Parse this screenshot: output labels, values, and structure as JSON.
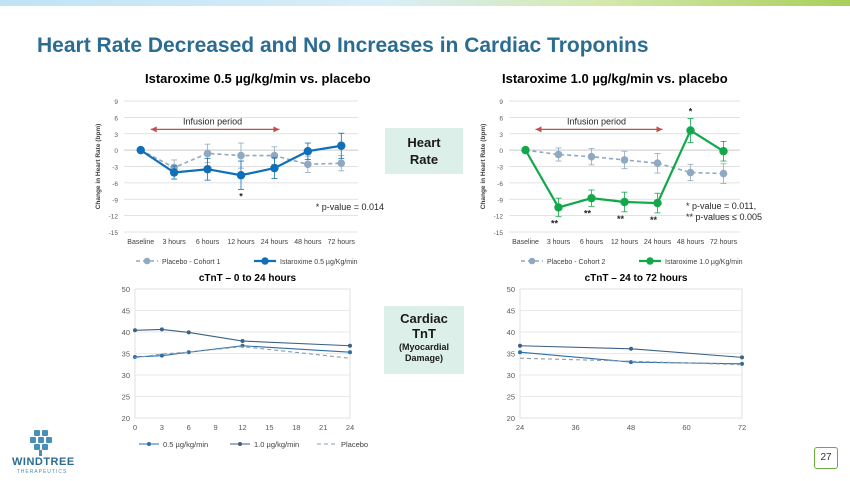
{
  "title": "Heart Rate Decreased and No Increases in Cardiac Troponins",
  "page_number": "27",
  "logo": {
    "name": "WINDTREE",
    "tagline": "THERAPEUTICS"
  },
  "labels": {
    "heart_rate": [
      "Heart",
      "Rate"
    ],
    "cardiac": [
      "Cardiac",
      "TnT",
      "(Myocardial",
      "Damage)"
    ]
  },
  "colors": {
    "accent": "#2b6c93",
    "placebo": "#8ea9c1",
    "dose05": "#0f6fb8",
    "dose10": "#12a84a",
    "arrow": "#c0504d"
  },
  "chart_data": [
    {
      "type": "line",
      "title": "Istaroxime 0.5 µg/kg/min vs. placebo",
      "ylabel": "Change in Heart Rate (bpm)",
      "categories": [
        "Baseline",
        "3 hours",
        "6 hours",
        "12 hours",
        "24 hours",
        "48 hours",
        "72 hours"
      ],
      "ylim": [
        -15,
        9
      ],
      "yticks": [
        -15,
        -12,
        -9,
        -6,
        -3,
        0,
        3,
        6,
        9
      ],
      "series": [
        {
          "name": "Placebo - Cohort 1",
          "values": [
            0,
            -3.2,
            -0.6,
            -1.0,
            -1.0,
            -2.6,
            -2.4
          ],
          "err": [
            0,
            1.4,
            1.7,
            2.3,
            1.6,
            1.5,
            1.4
          ]
        },
        {
          "name": "Istaroxime 0.5 µg/Kg/min",
          "values": [
            0,
            -4.1,
            -3.5,
            -4.6,
            -3.3,
            -0.2,
            0.8
          ],
          "err": [
            0,
            1.2,
            2.0,
            2.6,
            1.9,
            1.5,
            2.3
          ]
        }
      ],
      "infusion_label": "Infusion period",
      "stars": [
        {
          "index": 3,
          "text": "*"
        }
      ],
      "note": [
        "* p-value = 0.014"
      ]
    },
    {
      "type": "line",
      "title": "Istaroxime 1.0 µg/kg/min vs. placebo",
      "ylabel": "Change in Heart Rate (bpm)",
      "categories": [
        "Baseline",
        "3 hours",
        "6 hours",
        "12 hours",
        "24 hours",
        "48 hours",
        "72 hours"
      ],
      "ylim": [
        -15,
        9
      ],
      "yticks": [
        -15,
        -12,
        -9,
        -6,
        -3,
        0,
        3,
        6,
        9
      ],
      "series": [
        {
          "name": "Placebo - Cohort 2",
          "values": [
            0,
            -0.8,
            -1.2,
            -1.8,
            -2.4,
            -4.1,
            -4.3
          ],
          "err": [
            0,
            1.2,
            1.5,
            1.6,
            1.8,
            1.5,
            1.8
          ]
        },
        {
          "name": "Istaroxime 1.0 µg/Kg/min",
          "values": [
            0,
            -10.5,
            -8.8,
            -9.5,
            -9.7,
            3.6,
            -0.2
          ],
          "err": [
            0,
            1.7,
            1.5,
            1.8,
            1.8,
            2.2,
            1.8
          ]
        }
      ],
      "infusion_label": "Infusion period",
      "stars": [
        {
          "index": 1,
          "text": "**"
        },
        {
          "index": 2,
          "text": "**"
        },
        {
          "index": 3,
          "text": "**"
        },
        {
          "index": 4,
          "text": "**"
        },
        {
          "index": 5,
          "text": "*"
        }
      ],
      "note": [
        "* p-value = 0.011,",
        "** p-values ≤ 0.005"
      ]
    },
    {
      "type": "line",
      "title": "cTnT – 0 to 24 hours",
      "x": [
        0,
        3,
        6,
        12,
        24
      ],
      "xticks": [
        0,
        3,
        6,
        9,
        12,
        15,
        18,
        21,
        24
      ],
      "xlim": [
        0,
        24
      ],
      "ylim": [
        20,
        50
      ],
      "yticks": [
        20,
        25,
        30,
        35,
        40,
        45,
        50
      ],
      "series": [
        {
          "name": "0.5 µg/kg/min",
          "values": [
            34.2,
            34.5,
            35.3,
            36.8,
            35.3
          ]
        },
        {
          "name": "1.0 µg/kg/min",
          "values": [
            40.4,
            40.6,
            39.9,
            37.9,
            36.8
          ]
        },
        {
          "name": "Placebo",
          "values": [
            34.0,
            34.9,
            35.3,
            36.6,
            33.9
          ]
        }
      ]
    },
    {
      "type": "line",
      "title": "cTnT – 24 to 72 hours",
      "x": [
        24,
        48,
        72
      ],
      "xticks": [
        24,
        36,
        48,
        60,
        72
      ],
      "xlim": [
        24,
        72
      ],
      "ylim": [
        20,
        50
      ],
      "yticks": [
        20,
        25,
        30,
        35,
        40,
        45,
        50
      ],
      "series": [
        {
          "name": "0.5 µg/kg/min",
          "values": [
            35.3,
            33.0,
            32.6
          ]
        },
        {
          "name": "1.0 µg/kg/min",
          "values": [
            36.8,
            36.1,
            34.1
          ]
        },
        {
          "name": "Placebo",
          "values": [
            33.9,
            33.2,
            32.4
          ]
        }
      ]
    }
  ]
}
